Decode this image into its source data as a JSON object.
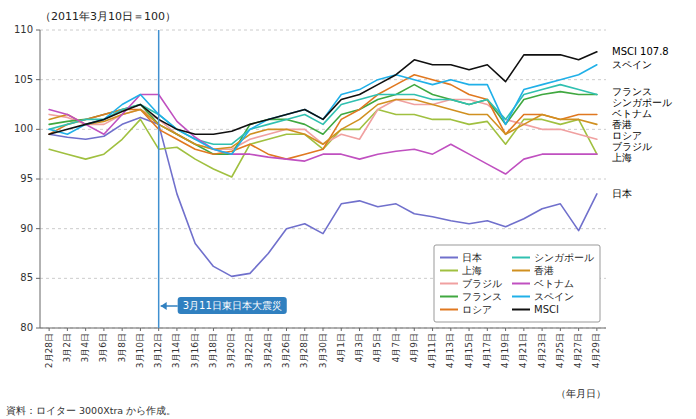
{
  "chart_data": {
    "type": "line",
    "title": "（2011年3月10日＝100）",
    "x_label": "（年月日）",
    "source": "資料：ロイター 3000Xtra から作成。",
    "categories": [
      "2月28日",
      "3月2日",
      "3月4日",
      "3月6日",
      "3月8日",
      "3月10日",
      "3月12日",
      "3月14日",
      "3月16日",
      "3月18日",
      "3月20日",
      "3月22日",
      "3月24日",
      "3月26日",
      "3月28日",
      "3月30日",
      "4月1日",
      "4月3日",
      "4月5日",
      "4月7日",
      "4月9日",
      "4月11日",
      "4月13日",
      "4月15日",
      "4月17日",
      "4月19日",
      "4月21日",
      "4月23日",
      "4月25日",
      "4月27日",
      "4月29日"
    ],
    "series": [
      {
        "name": "日本",
        "color": "#7070cc",
        "values": [
          99.5,
          99.2,
          99.0,
          99.3,
          100.5,
          101.2,
          100.5,
          93.5,
          88.5,
          86.2,
          85.2,
          85.5,
          87.5,
          90.0,
          90.5,
          89.5,
          92.5,
          92.8,
          92.2,
          92.5,
          91.5,
          91.2,
          90.8,
          90.5,
          90.8,
          90.2,
          91.0,
          92.0,
          92.5,
          89.8,
          93.5
        ]
      },
      {
        "name": "上海",
        "color": "#a0c040",
        "values": [
          98.0,
          97.5,
          97.0,
          97.5,
          99.0,
          101.0,
          98.0,
          98.2,
          97.0,
          96.0,
          95.2,
          98.5,
          99.0,
          99.5,
          99.5,
          98.0,
          100.0,
          100.0,
          102.0,
          101.5,
          101.5,
          101.0,
          101.0,
          100.5,
          100.8,
          98.5,
          101.0,
          101.0,
          100.5,
          101.0,
          97.5
        ]
      },
      {
        "name": "ブラジル",
        "color": "#f0a0a0",
        "values": [
          101.5,
          101.2,
          100.5,
          100.5,
          101.5,
          102.0,
          101.0,
          99.5,
          98.5,
          98.0,
          98.0,
          99.0,
          99.5,
          100.0,
          100.0,
          98.5,
          99.5,
          99.0,
          102.0,
          103.0,
          102.5,
          102.5,
          103.0,
          103.0,
          102.5,
          101.0,
          100.5,
          100.0,
          100.0,
          99.5,
          99.0
        ]
      },
      {
        "name": "フランス",
        "color": "#40a840",
        "values": [
          100.5,
          100.8,
          101.0,
          101.5,
          102.0,
          102.5,
          100.5,
          99.5,
          98.5,
          97.5,
          97.5,
          100.5,
          101.0,
          101.0,
          100.5,
          99.5,
          101.5,
          102.0,
          103.0,
          103.5,
          104.5,
          103.5,
          103.0,
          102.5,
          103.0,
          100.5,
          103.0,
          103.5,
          103.8,
          103.5,
          103.5
        ]
      },
      {
        "name": "ロシア",
        "color": "#e07820",
        "values": [
          99.5,
          100.5,
          101.0,
          101.5,
          102.0,
          102.0,
          100.0,
          99.0,
          98.0,
          97.5,
          97.8,
          98.5,
          97.5,
          97.0,
          97.5,
          98.0,
          101.0,
          102.0,
          103.5,
          104.5,
          105.5,
          105.0,
          104.5,
          103.5,
          103.0,
          99.5,
          101.5,
          101.5,
          101.0,
          101.5,
          101.5
        ]
      },
      {
        "name": "シンガポール",
        "color": "#30c0b0",
        "values": [
          100.0,
          100.5,
          101.0,
          101.0,
          102.0,
          102.5,
          101.5,
          100.0,
          99.0,
          98.5,
          98.5,
          100.0,
          100.5,
          101.0,
          101.5,
          100.5,
          102.5,
          103.0,
          103.5,
          103.5,
          103.5,
          103.0,
          103.0,
          102.5,
          103.0,
          101.0,
          103.5,
          104.0,
          104.5,
          104.0,
          103.5
        ]
      },
      {
        "name": "香港",
        "color": "#d09020",
        "values": [
          101.0,
          101.5,
          100.5,
          100.8,
          101.5,
          102.0,
          100.5,
          99.5,
          98.5,
          98.0,
          98.2,
          99.5,
          100.0,
          100.0,
          99.5,
          98.5,
          100.0,
          101.0,
          102.5,
          103.0,
          103.0,
          102.5,
          102.0,
          101.5,
          101.5,
          99.5,
          100.5,
          101.5,
          101.0,
          101.0,
          100.5
        ]
      },
      {
        "name": "ベトナム",
        "color": "#c050c0",
        "values": [
          102.0,
          101.5,
          100.5,
          99.5,
          101.5,
          103.5,
          103.5,
          100.8,
          99.2,
          98.0,
          97.5,
          97.5,
          97.2,
          97.0,
          96.8,
          97.5,
          97.5,
          97.0,
          97.5,
          97.8,
          98.0,
          97.5,
          98.5,
          97.5,
          96.5,
          95.5,
          97.0,
          97.5,
          97.5,
          97.5,
          97.5
        ]
      },
      {
        "name": "スペイン",
        "color": "#20b0e8",
        "values": [
          100.0,
          99.5,
          100.5,
          101.0,
          102.5,
          103.5,
          101.5,
          100.0,
          99.0,
          98.0,
          97.5,
          100.0,
          101.0,
          101.5,
          102.0,
          101.0,
          103.5,
          104.0,
          105.0,
          105.5,
          105.0,
          104.5,
          105.0,
          104.5,
          104.5,
          100.5,
          104.0,
          104.5,
          105.0,
          105.5,
          106.5
        ]
      },
      {
        "name": "MSCI",
        "color": "#101010",
        "values": [
          99.5,
          100.0,
          100.5,
          101.0,
          101.8,
          102.5,
          101.0,
          100.0,
          99.5,
          99.5,
          99.8,
          100.5,
          101.0,
          101.5,
          102.0,
          101.0,
          103.0,
          103.5,
          104.5,
          105.5,
          107.0,
          106.5,
          106.5,
          106.0,
          106.5,
          104.8,
          107.5,
          107.5,
          107.5,
          107.0,
          107.8
        ]
      }
    ],
    "annotations": [
      {
        "text": "3月11日東日本大震災",
        "x": "3月12日"
      },
      {
        "text": "MSCI 107.8",
        "y": 107.8
      },
      {
        "text": "スペイン",
        "y": 106.5
      },
      {
        "text": "フランス",
        "y": 103.8
      },
      {
        "text": "シンガポール",
        "y": 103.2
      },
      {
        "text": "ベトナム",
        "y": 101.5
      },
      {
        "text": "香港",
        "y": 100.8
      },
      {
        "text": "ロシア",
        "y": 100.0
      },
      {
        "text": "ブラジル",
        "y": 99.2
      },
      {
        "text": "上海",
        "y": 97.5
      },
      {
        "text": "日本",
        "y": 93.5
      }
    ],
    "ylim": [
      80,
      110
    ],
    "yticks": [
      80,
      85,
      90,
      95,
      100,
      105,
      110
    ],
    "grid": true,
    "legend": "lower right"
  }
}
